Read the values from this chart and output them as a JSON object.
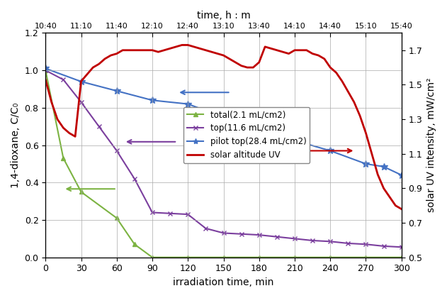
{
  "title_top": "time, h : m",
  "xlabel": "irradiation time, min",
  "ylabel_left": "1,4-dioxane, C/C₀",
  "ylabel_right": "solar UV intensity, mW/cm²",
  "xlim": [
    0,
    300
  ],
  "ylim_left": [
    0.0,
    1.2
  ],
  "ylim_right": [
    0.5,
    1.8
  ],
  "xticks": [
    0,
    30,
    60,
    90,
    120,
    150,
    180,
    210,
    240,
    270,
    300
  ],
  "yticks_left": [
    0.0,
    0.2,
    0.4,
    0.6,
    0.8,
    1.0,
    1.2
  ],
  "yticks_right": [
    0.5,
    0.7,
    0.9,
    1.1,
    1.3,
    1.5,
    1.7
  ],
  "top_xtick_labels": [
    "10:40",
    "11:10",
    "11:40",
    "12:10",
    "12:40",
    "13:10",
    "13:40",
    "14:10",
    "14:40",
    "15:10",
    "15:40"
  ],
  "green_x": [
    0,
    15,
    30,
    60,
    75,
    90,
    120,
    150,
    180,
    210,
    240,
    270,
    300
  ],
  "green_y": [
    1.0,
    0.53,
    0.35,
    0.21,
    0.07,
    0.0,
    0.0,
    0.0,
    0.0,
    0.0,
    0.0,
    0.0,
    0.0
  ],
  "purple_x": [
    0,
    15,
    30,
    45,
    60,
    75,
    90,
    105,
    120,
    135,
    150,
    165,
    180,
    195,
    210,
    225,
    240,
    255,
    270,
    285,
    300
  ],
  "purple_y": [
    1.0,
    0.95,
    0.83,
    0.7,
    0.57,
    0.42,
    0.24,
    0.235,
    0.23,
    0.155,
    0.13,
    0.125,
    0.12,
    0.11,
    0.1,
    0.09,
    0.085,
    0.075,
    0.07,
    0.06,
    0.055
  ],
  "blue_x": [
    0,
    30,
    60,
    90,
    120,
    150,
    180,
    210,
    240,
    270,
    285,
    300
  ],
  "blue_y": [
    1.01,
    0.94,
    0.89,
    0.84,
    0.82,
    0.75,
    0.7,
    0.625,
    0.57,
    0.5,
    0.485,
    0.44
  ],
  "red_x": [
    0,
    5,
    10,
    15,
    20,
    25,
    30,
    35,
    40,
    45,
    50,
    55,
    60,
    65,
    70,
    75,
    80,
    85,
    90,
    95,
    100,
    105,
    110,
    115,
    120,
    125,
    130,
    135,
    140,
    145,
    150,
    155,
    160,
    165,
    170,
    175,
    180,
    185,
    190,
    195,
    200,
    205,
    210,
    215,
    220,
    225,
    230,
    235,
    240,
    245,
    250,
    255,
    260,
    265,
    270,
    275,
    280,
    285,
    290,
    295,
    300
  ],
  "red_y": [
    1.53,
    1.4,
    1.3,
    1.25,
    1.22,
    1.2,
    1.52,
    1.56,
    1.6,
    1.62,
    1.65,
    1.67,
    1.68,
    1.7,
    1.7,
    1.7,
    1.7,
    1.7,
    1.7,
    1.69,
    1.7,
    1.71,
    1.72,
    1.73,
    1.73,
    1.72,
    1.71,
    1.7,
    1.69,
    1.68,
    1.67,
    1.65,
    1.63,
    1.61,
    1.6,
    1.6,
    1.63,
    1.72,
    1.71,
    1.7,
    1.69,
    1.68,
    1.7,
    1.7,
    1.7,
    1.68,
    1.67,
    1.65,
    1.6,
    1.57,
    1.52,
    1.46,
    1.4,
    1.32,
    1.22,
    1.1,
    0.98,
    0.9,
    0.85,
    0.8,
    0.78
  ],
  "green_color": "#7CB342",
  "purple_color": "#7B3F9E",
  "blue_color": "#4472C4",
  "red_color": "#C00000",
  "background_color": "#FFFFFF",
  "gridcolor": "#AAAAAA"
}
